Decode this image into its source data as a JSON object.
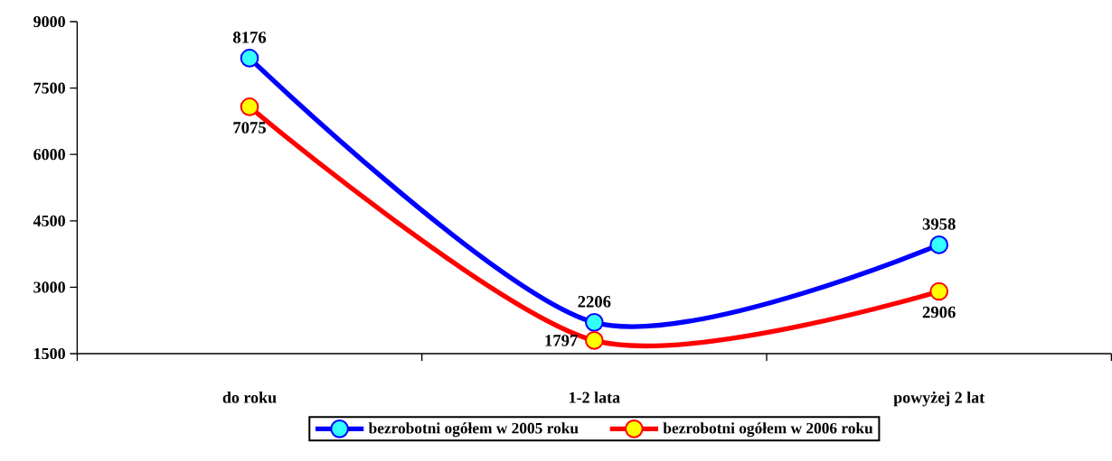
{
  "chart_data": {
    "type": "line",
    "categories": [
      "do roku",
      "1-2 lata",
      "powyżej 2 lat"
    ],
    "series": [
      {
        "name": "bezrobotni ogółem w 2005 roku",
        "color": "#0000ff",
        "colors": [
          "#33ffff",
          "#33ffff",
          "#33ffff"
        ],
        "values": [
          8176,
          2206,
          3958
        ],
        "value_labels": [
          "8176",
          "2206",
          "3958"
        ]
      },
      {
        "name": "bezrobotni ogółem w 2006 roku",
        "color": "#ff0000",
        "colors": [
          "#ffff00",
          "#ffff00",
          "#ffff00"
        ],
        "values": [
          7075,
          1797,
          2906
        ],
        "value_labels": [
          "7075",
          "1797",
          "2906"
        ]
      }
    ],
    "ylim": [
      1500,
      9000
    ],
    "yticks": [
      1500,
      3000,
      4500,
      6000,
      7500,
      9000
    ],
    "grid": false,
    "legend": "bottom",
    "marker": "circle",
    "line_style": "solid"
  }
}
